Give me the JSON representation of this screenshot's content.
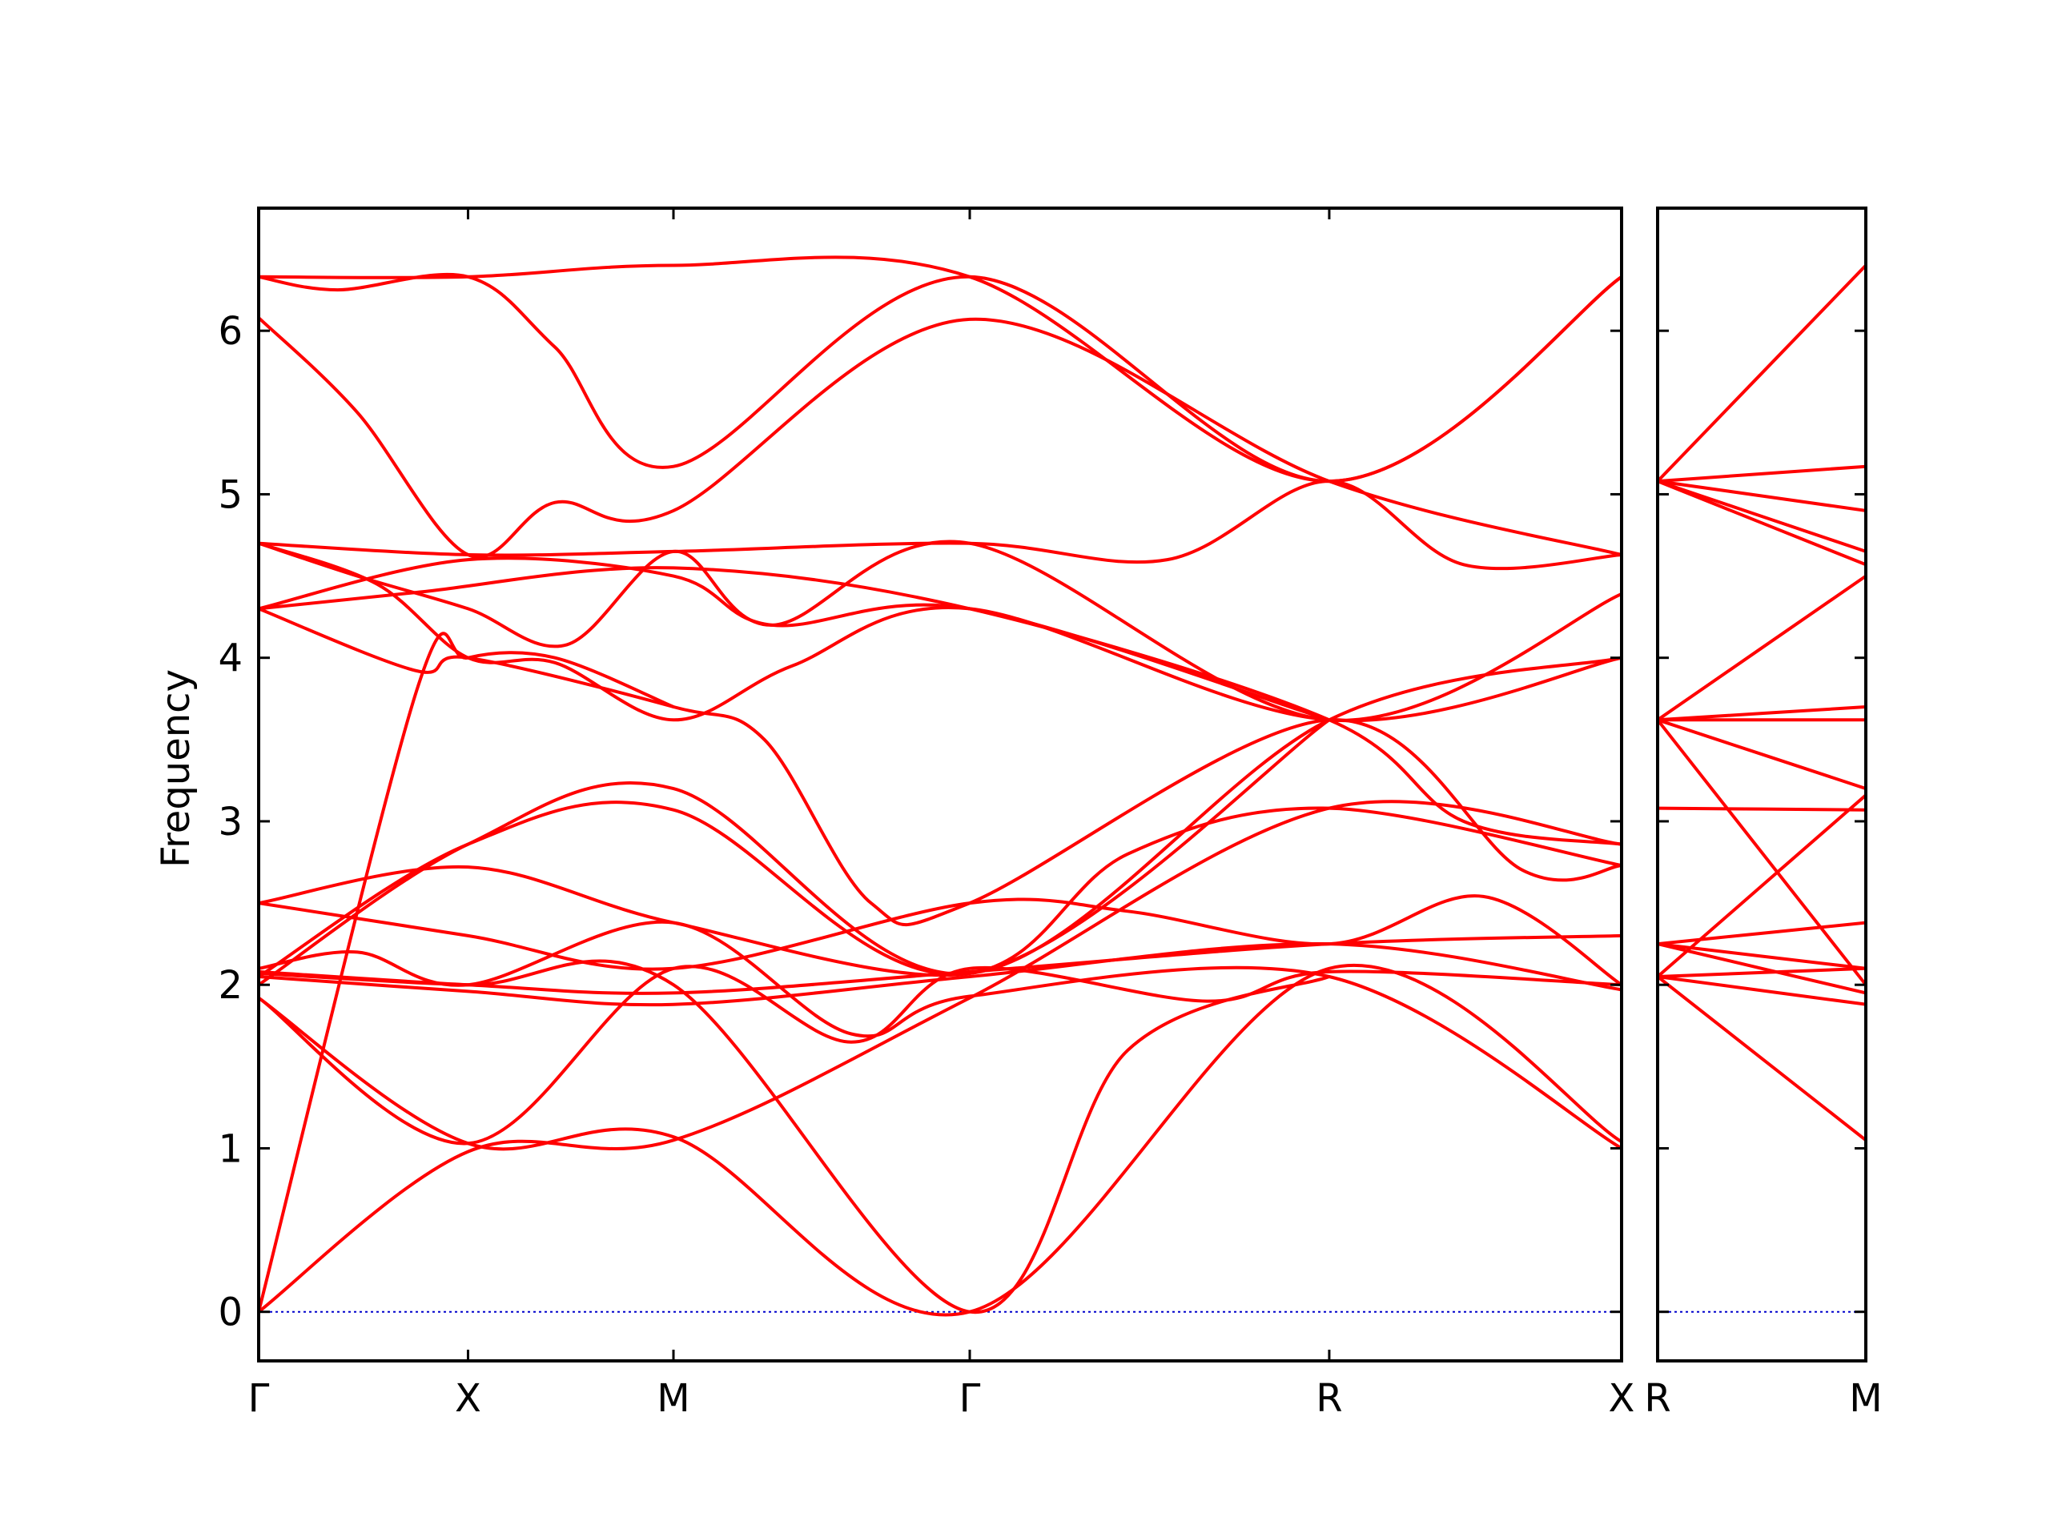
{
  "chart_data": {
    "type": "line",
    "title": "",
    "ylabel": "Frequency",
    "ylim": [
      -0.3,
      6.75
    ],
    "yticks": [
      0,
      1,
      2,
      3,
      4,
      5,
      6
    ],
    "grid": false,
    "colors": {
      "bands": "#ff0000",
      "zero_line": "#0000cc",
      "frame": "#000000"
    },
    "panels": [
      {
        "xlim": [
          0,
          3.45
        ],
        "high_symmetry_points": [
          {
            "x": 0.0,
            "label": "Γ"
          },
          {
            "x": 0.53,
            "label": "X"
          },
          {
            "x": 1.05,
            "label": "M"
          },
          {
            "x": 1.8,
            "label": "Γ"
          },
          {
            "x": 2.71,
            "label": "R"
          },
          {
            "x": 3.45,
            "label": "X"
          }
        ],
        "bands": [
          [
            [
              0,
              6.33
            ],
            [
              0.53,
              6.33
            ],
            [
              1.05,
              6.4
            ],
            [
              1.8,
              6.33
            ],
            [
              2.71,
              5.08
            ],
            [
              3.45,
              6.33
            ]
          ],
          [
            [
              0,
              6.33
            ],
            [
              0.2,
              6.25
            ],
            [
              0.53,
              6.33
            ],
            [
              0.75,
              5.9
            ],
            [
              1.05,
              5.17
            ],
            [
              1.8,
              6.33
            ],
            [
              2.71,
              5.08
            ],
            [
              3.45,
              6.33
            ]
          ],
          [
            [
              0,
              6.08
            ],
            [
              0.25,
              5.5
            ],
            [
              0.53,
              4.63
            ],
            [
              0.75,
              4.95
            ],
            [
              1.05,
              4.9
            ],
            [
              1.8,
              6.07
            ],
            [
              2.71,
              5.08
            ],
            [
              3.45,
              4.63
            ]
          ],
          [
            [
              0,
              4.7
            ],
            [
              0.53,
              4.63
            ],
            [
              1.05,
              4.65
            ],
            [
              1.8,
              4.7
            ],
            [
              2.3,
              4.6
            ],
            [
              2.71,
              5.08
            ],
            [
              3.05,
              4.57
            ],
            [
              3.45,
              4.63
            ]
          ],
          [
            [
              0,
              4.7
            ],
            [
              0.3,
              4.45
            ],
            [
              0.53,
              4.0
            ],
            [
              0.75,
              3.97
            ],
            [
              1.05,
              3.62
            ],
            [
              1.35,
              3.95
            ],
            [
              1.8,
              4.3
            ],
            [
              2.71,
              3.62
            ],
            [
              3.45,
              4.0
            ]
          ],
          [
            [
              0,
              4.7
            ],
            [
              0.25,
              4.5
            ],
            [
              0.53,
              4.3
            ],
            [
              0.78,
              4.08
            ],
            [
              1.05,
              4.65
            ],
            [
              1.3,
              4.2
            ],
            [
              1.8,
              4.7
            ],
            [
              2.71,
              3.62
            ],
            [
              3.45,
              4.39
            ]
          ],
          [
            [
              0,
              4.3
            ],
            [
              0.4,
              4.4
            ],
            [
              1.05,
              4.55
            ],
            [
              1.8,
              4.3
            ],
            [
              2.71,
              3.62
            ],
            [
              3.05,
              3.0
            ],
            [
              3.45,
              2.86
            ]
          ],
          [
            [
              0,
              4.3
            ],
            [
              0.4,
              3.92
            ],
            [
              0.53,
              4.0
            ],
            [
              1.05,
              3.7
            ],
            [
              1.28,
              3.5
            ],
            [
              1.55,
              2.5
            ],
            [
              1.8,
              2.5
            ],
            [
              2.71,
              3.62
            ],
            [
              3.2,
              2.7
            ],
            [
              3.45,
              2.73
            ]
          ],
          [
            [
              0,
              4.3
            ],
            [
              0.53,
              4.6
            ],
            [
              1.05,
              4.5
            ],
            [
              1.3,
              4.2
            ],
            [
              1.8,
              4.3
            ],
            [
              2.71,
              3.62
            ]
          ],
          [
            [
              0,
              0.0
            ],
            [
              0.4,
              3.8
            ],
            [
              0.53,
              4.0
            ],
            [
              0.75,
              4.0
            ],
            [
              1.05,
              3.7
            ]
          ],
          [
            [
              0,
              2.5
            ],
            [
              0.53,
              2.3
            ],
            [
              1.05,
              2.1
            ],
            [
              1.8,
              2.5
            ],
            [
              2.2,
              2.45
            ],
            [
              2.71,
              2.25
            ],
            [
              3.1,
              2.54
            ],
            [
              3.45,
              2.0
            ]
          ],
          [
            [
              0,
              2.5
            ],
            [
              0.53,
              2.72
            ],
            [
              1.05,
              2.38
            ],
            [
              1.8,
              2.07
            ],
            [
              2.2,
              2.8
            ],
            [
              2.71,
              3.08
            ],
            [
              3.45,
              2.73
            ]
          ],
          [
            [
              0,
              2.1
            ],
            [
              0.25,
              2.2
            ],
            [
              0.53,
              2.0
            ],
            [
              1.05,
              2.38
            ],
            [
              1.5,
              1.7
            ],
            [
              1.8,
              1.93
            ],
            [
              2.71,
              2.05
            ],
            [
              3.45,
              1.0
            ]
          ],
          [
            [
              0,
              2.08
            ],
            [
              0.53,
              2.0
            ],
            [
              1.05,
              1.95
            ],
            [
              1.8,
              2.08
            ],
            [
              2.71,
              2.25
            ],
            [
              3.45,
              2.3
            ]
          ],
          [
            [
              0,
              2.05
            ],
            [
              0.53,
              1.96
            ],
            [
              1.05,
              1.88
            ],
            [
              1.8,
              2.05
            ],
            [
              2.71,
              2.25
            ],
            [
              3.45,
              1.97
            ]
          ],
          [
            [
              0,
              2.0
            ],
            [
              0.53,
              2.86
            ],
            [
              1.05,
              3.2
            ],
            [
              1.8,
              2.07
            ],
            [
              2.71,
              3.62
            ],
            [
              3.45,
              4.0
            ]
          ],
          [
            [
              0,
              2.05
            ],
            [
              0.53,
              2.86
            ],
            [
              1.05,
              3.07
            ],
            [
              1.8,
              2.07
            ],
            [
              2.71,
              3.62
            ]
          ],
          [
            [
              0,
              0.0
            ],
            [
              0.53,
              0.98
            ],
            [
              1.05,
              1.05
            ],
            [
              1.8,
              1.92
            ],
            [
              2.71,
              3.08
            ],
            [
              3.45,
              2.86
            ]
          ],
          [
            [
              0,
              1.92
            ],
            [
              0.53,
              1.03
            ],
            [
              1.05,
              1.07
            ],
            [
              1.8,
              0.0
            ],
            [
              2.71,
              2.1
            ],
            [
              3.45,
              1.04
            ]
          ],
          [
            [
              0,
              1.92
            ],
            [
              0.53,
              1.03
            ],
            [
              1.05,
              2.1
            ],
            [
              1.5,
              1.65
            ],
            [
              1.8,
              2.1
            ],
            [
              2.4,
              1.9
            ],
            [
              2.71,
              2.08
            ],
            [
              3.45,
              2.0
            ]
          ],
          [
            [
              0,
              2.07
            ],
            [
              0.53,
              2.0
            ],
            [
              1.05,
              2.0
            ],
            [
              1.8,
              0.0
            ],
            [
              2.2,
              1.6
            ],
            [
              2.71,
              2.05
            ]
          ]
        ]
      },
      {
        "xlim": [
          0,
          0.53
        ],
        "high_symmetry_points": [
          {
            "x": 0.0,
            "label": "R"
          },
          {
            "x": 0.53,
            "label": "M"
          }
        ],
        "bands": [
          [
            [
              0,
              5.08
            ],
            [
              0.53,
              6.4
            ]
          ],
          [
            [
              0,
              5.08
            ],
            [
              0.53,
              5.17
            ]
          ],
          [
            [
              0,
              5.08
            ],
            [
              0.53,
              4.9
            ]
          ],
          [
            [
              0,
              5.08
            ],
            [
              0.53,
              4.65
            ]
          ],
          [
            [
              0,
              5.08
            ],
            [
              0.53,
              4.57
            ]
          ],
          [
            [
              0,
              3.62
            ],
            [
              0.53,
              4.5
            ]
          ],
          [
            [
              0,
              3.62
            ],
            [
              0.53,
              3.7
            ]
          ],
          [
            [
              0,
              3.62
            ],
            [
              0.53,
              3.62
            ]
          ],
          [
            [
              0,
              3.62
            ],
            [
              0.53,
              3.2
            ]
          ],
          [
            [
              0,
              3.62
            ],
            [
              0.53,
              2.0
            ]
          ],
          [
            [
              0,
              3.08
            ],
            [
              0.53,
              3.07
            ]
          ],
          [
            [
              0,
              2.25
            ],
            [
              0.53,
              2.38
            ]
          ],
          [
            [
              0,
              2.25
            ],
            [
              0.53,
              2.1
            ]
          ],
          [
            [
              0,
              2.25
            ],
            [
              0.53,
              1.95
            ]
          ],
          [
            [
              0,
              2.05
            ],
            [
              0.53,
              2.1
            ]
          ],
          [
            [
              0,
              2.05
            ],
            [
              0.53,
              1.88
            ]
          ],
          [
            [
              0,
              2.05
            ],
            [
              0.53,
              1.05
            ]
          ],
          [
            [
              0,
              2.05
            ],
            [
              0.53,
              3.16
            ]
          ]
        ]
      }
    ]
  }
}
